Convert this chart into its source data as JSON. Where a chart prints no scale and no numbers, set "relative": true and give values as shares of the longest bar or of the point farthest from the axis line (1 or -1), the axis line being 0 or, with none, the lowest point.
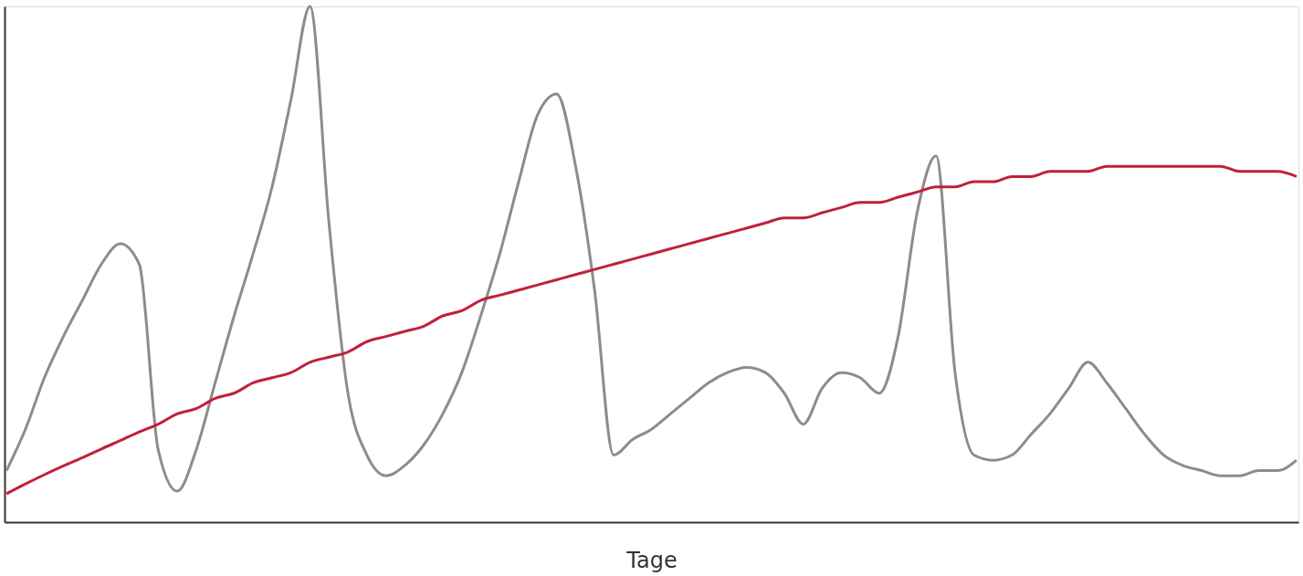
{
  "chart_data": {
    "type": "line",
    "xlabel": "Tage",
    "relative": true,
    "line_style": "solid",
    "categories": [
      null,
      null,
      null,
      null,
      null,
      null,
      null,
      null,
      null,
      null,
      null,
      null,
      null,
      null,
      null,
      null,
      null,
      null,
      null,
      null,
      null,
      null,
      null,
      null,
      null,
      null,
      null,
      null,
      null,
      null,
      null,
      null,
      null,
      null,
      null,
      null,
      null,
      null,
      null,
      null,
      null,
      null,
      null,
      null,
      null,
      null,
      null,
      null,
      null,
      null,
      null,
      null,
      null,
      null,
      null,
      null,
      null,
      null,
      null,
      null,
      null,
      null,
      null,
      null,
      null,
      null,
      null,
      null,
      null
    ],
    "series": [
      {
        "color": "#8c8c8c",
        "values": [
          0.1,
          0.18,
          0.28,
          0.36,
          0.43,
          0.5,
          0.54,
          0.5,
          0.14,
          0.06,
          0.14,
          0.27,
          0.4,
          0.52,
          0.65,
          0.82,
          1.0,
          0.58,
          0.25,
          0.13,
          0.09,
          0.11,
          0.15,
          0.21,
          0.29,
          0.4,
          0.52,
          0.66,
          0.79,
          0.83,
          0.69,
          0.45,
          0.13,
          0.16,
          0.18,
          0.21,
          0.24,
          0.27,
          0.29,
          0.3,
          0.29,
          0.25,
          0.19,
          0.26,
          0.29,
          0.28,
          0.25,
          0.36,
          0.6,
          0.71,
          0.29,
          0.13,
          0.12,
          0.13,
          0.17,
          0.21,
          0.26,
          0.31,
          0.27,
          0.22,
          0.17,
          0.13,
          0.11,
          0.1,
          0.09,
          0.09,
          0.1,
          0.1,
          0.12
        ]
      },
      {
        "color": "#c0203a",
        "values": [
          0.055,
          0.074,
          0.092,
          0.109,
          0.125,
          0.142,
          0.158,
          0.175,
          0.19,
          0.21,
          0.22,
          0.24,
          0.25,
          0.27,
          0.28,
          0.29,
          0.31,
          0.32,
          0.33,
          0.35,
          0.36,
          0.37,
          0.38,
          0.4,
          0.41,
          0.43,
          0.44,
          0.45,
          0.46,
          0.47,
          0.48,
          0.49,
          0.5,
          0.51,
          0.52,
          0.53,
          0.54,
          0.55,
          0.56,
          0.57,
          0.58,
          0.59,
          0.59,
          0.6,
          0.61,
          0.62,
          0.62,
          0.63,
          0.64,
          0.65,
          0.65,
          0.66,
          0.66,
          0.67,
          0.67,
          0.68,
          0.68,
          0.68,
          0.69,
          0.69,
          0.69,
          0.69,
          0.69,
          0.69,
          0.69,
          0.68,
          0.68,
          0.68,
          0.67
        ]
      }
    ]
  }
}
